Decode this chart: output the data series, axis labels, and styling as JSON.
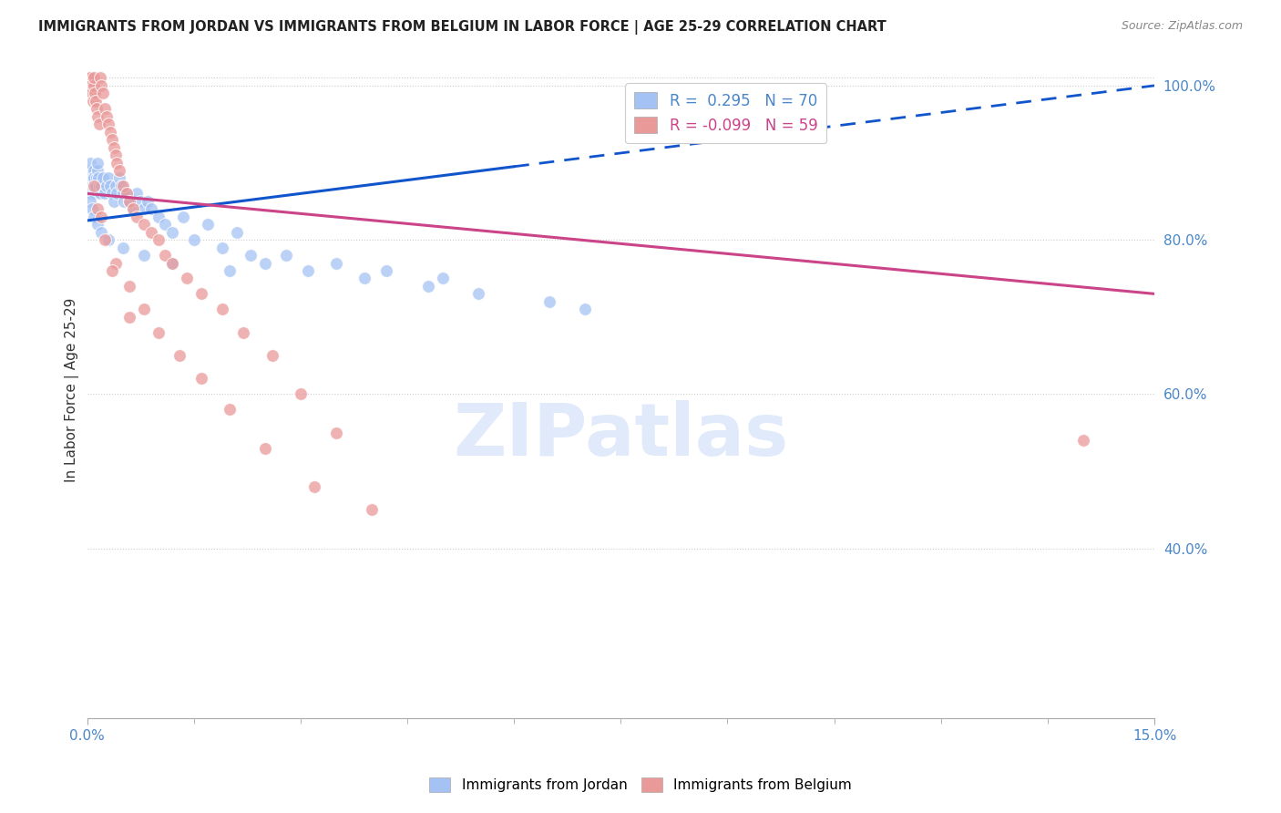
{
  "title": "IMMIGRANTS FROM JORDAN VS IMMIGRANTS FROM BELGIUM IN LABOR FORCE | AGE 25-29 CORRELATION CHART",
  "source": "Source: ZipAtlas.com",
  "ylabel": "In Labor Force | Age 25-29",
  "x_min": 0.0,
  "x_max": 15.0,
  "y_min": 18.0,
  "y_max": 103.0,
  "jordan_color": "#a4c2f4",
  "belgium_color": "#ea9999",
  "jordan_line_color": "#1155cc",
  "belgium_line_color": "#cc4488",
  "watermark_color": "#c9daf8",
  "jordan_line_x0": 0.0,
  "jordan_line_y0": 82.5,
  "jordan_line_x1": 15.0,
  "jordan_line_y1": 100.0,
  "jordan_dash_x0": 6.0,
  "jordan_dash_x1": 15.0,
  "belgium_line_x0": 0.0,
  "belgium_line_y0": 86.0,
  "belgium_line_x1": 15.0,
  "belgium_line_y1": 73.0,
  "right_yticks": [
    40.0,
    60.0,
    80.0,
    100.0
  ],
  "right_ytick_labels": [
    "40.0%",
    "60.0%",
    "80.0%",
    "100.0%"
  ],
  "jordan_x": [
    0.03,
    0.04,
    0.05,
    0.06,
    0.06,
    0.07,
    0.08,
    0.09,
    0.1,
    0.1,
    0.11,
    0.12,
    0.13,
    0.14,
    0.15,
    0.16,
    0.17,
    0.18,
    0.2,
    0.22,
    0.25,
    0.28,
    0.3,
    0.33,
    0.35,
    0.38,
    0.4,
    0.42,
    0.45,
    0.48,
    0.5,
    0.52,
    0.55,
    0.6,
    0.65,
    0.7,
    0.75,
    0.8,
    0.85,
    0.9,
    1.0,
    1.1,
    1.2,
    1.35,
    1.5,
    1.7,
    1.9,
    2.1,
    2.3,
    2.5,
    2.8,
    3.1,
    3.5,
    3.9,
    4.2,
    4.8,
    5.0,
    5.5,
    6.5,
    7.0,
    0.05,
    0.07,
    0.09,
    0.15,
    0.2,
    0.3,
    0.5,
    0.8,
    1.2,
    2.0
  ],
  "jordan_y": [
    88,
    89,
    90,
    88,
    86,
    87,
    88,
    89,
    87,
    88,
    86,
    87,
    88,
    89,
    90,
    88,
    87,
    86,
    87,
    88,
    86,
    87,
    88,
    87,
    86,
    85,
    87,
    86,
    88,
    87,
    86,
    85,
    86,
    85,
    84,
    86,
    85,
    84,
    85,
    84,
    83,
    82,
    81,
    83,
    80,
    82,
    79,
    81,
    78,
    77,
    78,
    76,
    77,
    75,
    76,
    74,
    75,
    73,
    72,
    71,
    85,
    84,
    83,
    82,
    81,
    80,
    79,
    78,
    77,
    76
  ],
  "belgium_x": [
    0.03,
    0.04,
    0.05,
    0.06,
    0.07,
    0.08,
    0.09,
    0.1,
    0.11,
    0.12,
    0.13,
    0.15,
    0.17,
    0.18,
    0.2,
    0.22,
    0.25,
    0.28,
    0.3,
    0.33,
    0.35,
    0.38,
    0.4,
    0.42,
    0.45,
    0.5,
    0.55,
    0.6,
    0.65,
    0.7,
    0.8,
    0.9,
    1.0,
    1.1,
    1.2,
    1.4,
    1.6,
    1.9,
    2.2,
    2.6,
    3.0,
    3.5,
    0.15,
    0.25,
    0.4,
    0.6,
    0.8,
    1.0,
    1.3,
    1.6,
    2.0,
    2.5,
    3.2,
    4.0,
    14.0,
    0.1,
    0.2,
    0.35,
    0.6
  ],
  "belgium_y": [
    101,
    100,
    101,
    100,
    99,
    98,
    100,
    101,
    99,
    98,
    97,
    96,
    95,
    101,
    100,
    99,
    97,
    96,
    95,
    94,
    93,
    92,
    91,
    90,
    89,
    87,
    86,
    85,
    84,
    83,
    82,
    81,
    80,
    78,
    77,
    75,
    73,
    71,
    68,
    65,
    60,
    55,
    84,
    80,
    77,
    74,
    71,
    68,
    65,
    62,
    58,
    53,
    48,
    45,
    54,
    87,
    83,
    76,
    70
  ]
}
